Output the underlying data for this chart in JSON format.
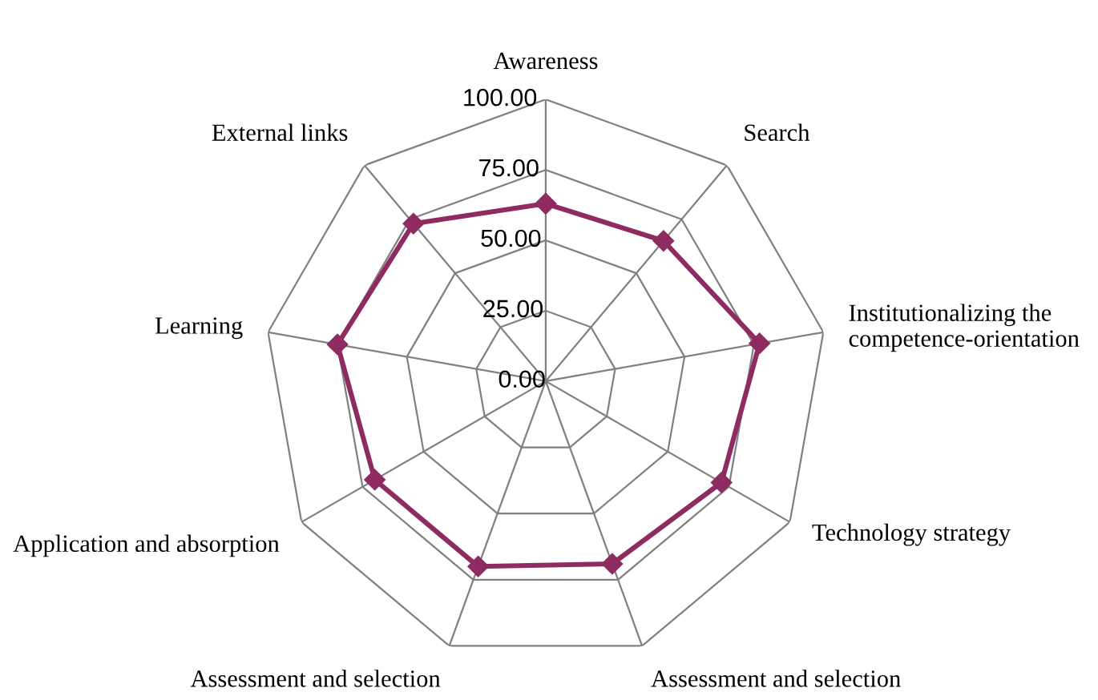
{
  "chart_data": {
    "type": "radar",
    "categories": [
      "Awareness",
      "Search",
      "Institutionalizing the competence-orientation",
      "Technology strategy",
      "Assessment and selection",
      "Assessment and selection",
      "Application and absorption",
      "Learning",
      "External links"
    ],
    "series": [
      {
        "color": "#8e2c61",
        "values": [
          63,
          65,
          77,
          72,
          69,
          70,
          70,
          75,
          73
        ]
      }
    ],
    "ylim": [
      0,
      100
    ],
    "yticks": [
      {
        "value": 0,
        "label": "0.00"
      },
      {
        "value": 25,
        "label": "25.00"
      },
      {
        "value": 50,
        "label": "50.00"
      },
      {
        "value": 75,
        "label": "75.00"
      },
      {
        "value": 100,
        "label": "100.00"
      }
    ],
    "grid": true,
    "marker": "diamond",
    "line_style": "solid"
  }
}
